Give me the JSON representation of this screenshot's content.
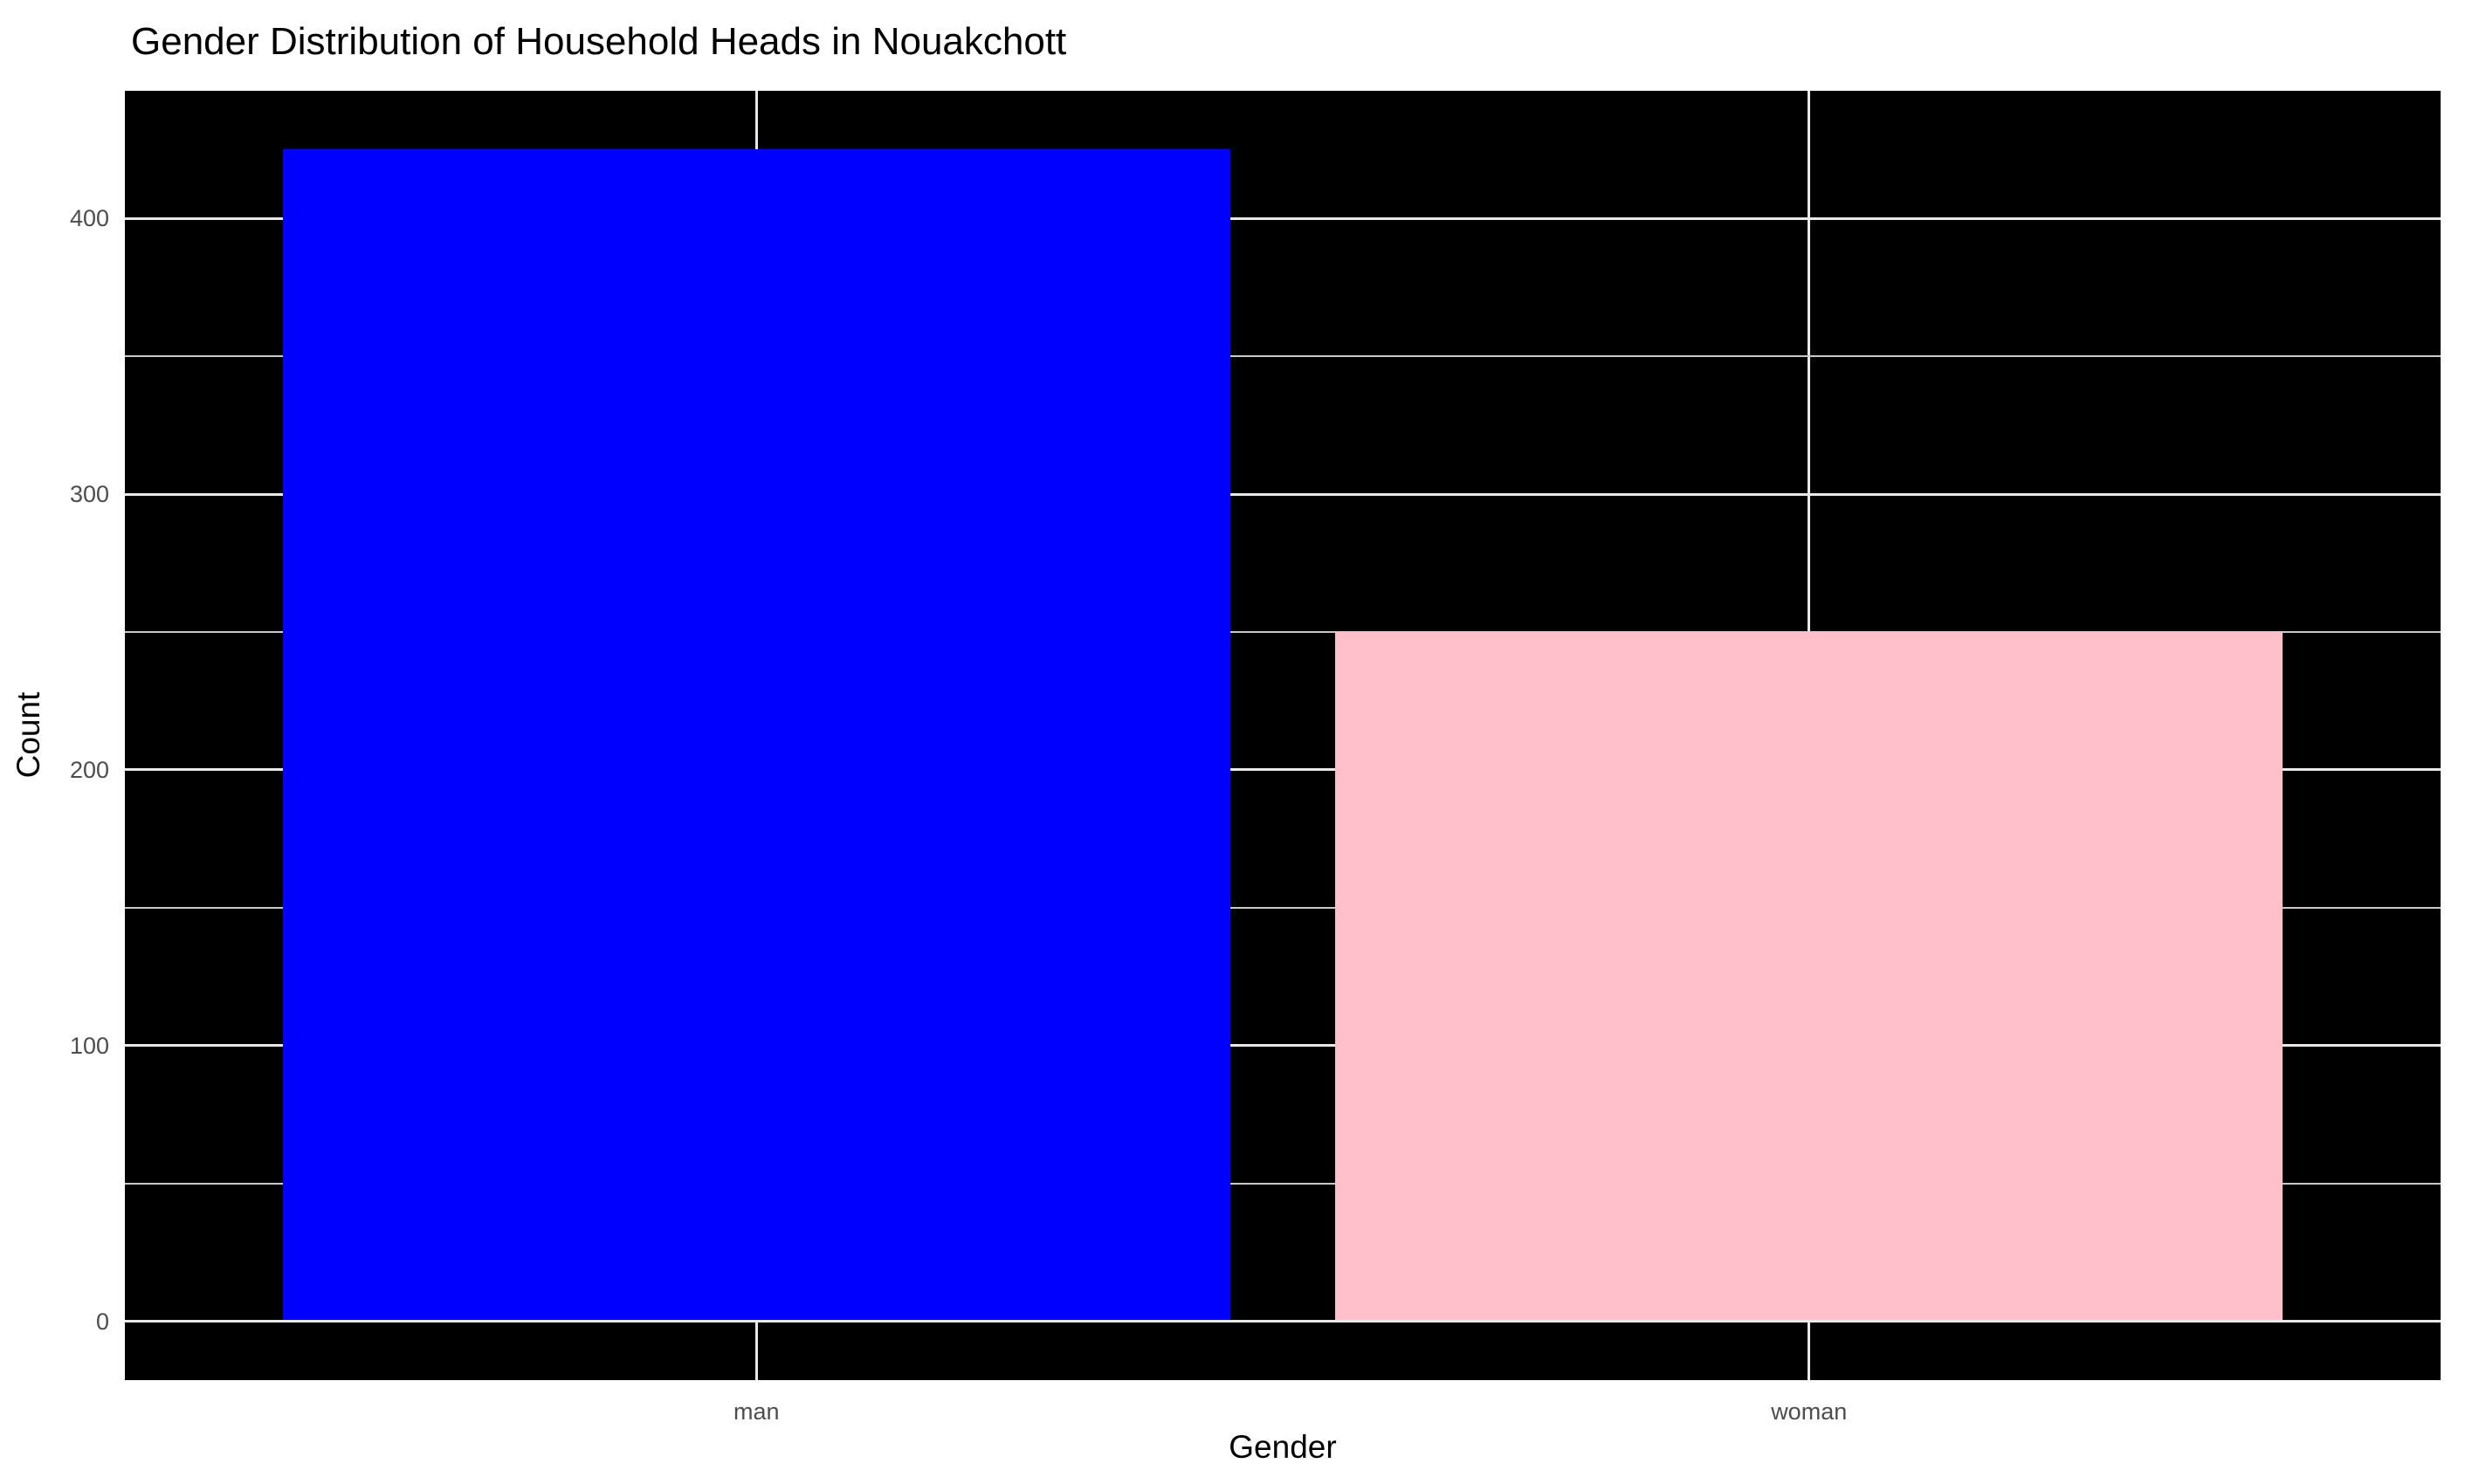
{
  "chart_data": {
    "type": "bar",
    "title": "Gender Distribution of Household Heads in Nouakchott",
    "xlabel": "Gender",
    "ylabel": "Count",
    "categories": [
      "man",
      "woman"
    ],
    "values": [
      425,
      250
    ],
    "bar_colors": [
      "#0000FF",
      "#FFC0CB"
    ],
    "y_major_ticks": [
      0,
      100,
      200,
      300,
      400
    ],
    "y_minor_ticks": [
      50,
      150,
      250,
      350
    ],
    "ylim": [
      -21.25,
      446.25
    ],
    "xlim": [
      0.4,
      2.6
    ],
    "x_positions": [
      1,
      2
    ],
    "bar_width": 0.9,
    "grid": "major+minor horizontal, major vertical at category centers",
    "legend": "none",
    "colors": {
      "page_background": "#FFFFFF",
      "panel_background": "#000000",
      "grid_major": "#E9E9E9",
      "grid_minor": "#C9C9C9",
      "tick_label": "#4D4D4D",
      "text": "#000000"
    }
  }
}
